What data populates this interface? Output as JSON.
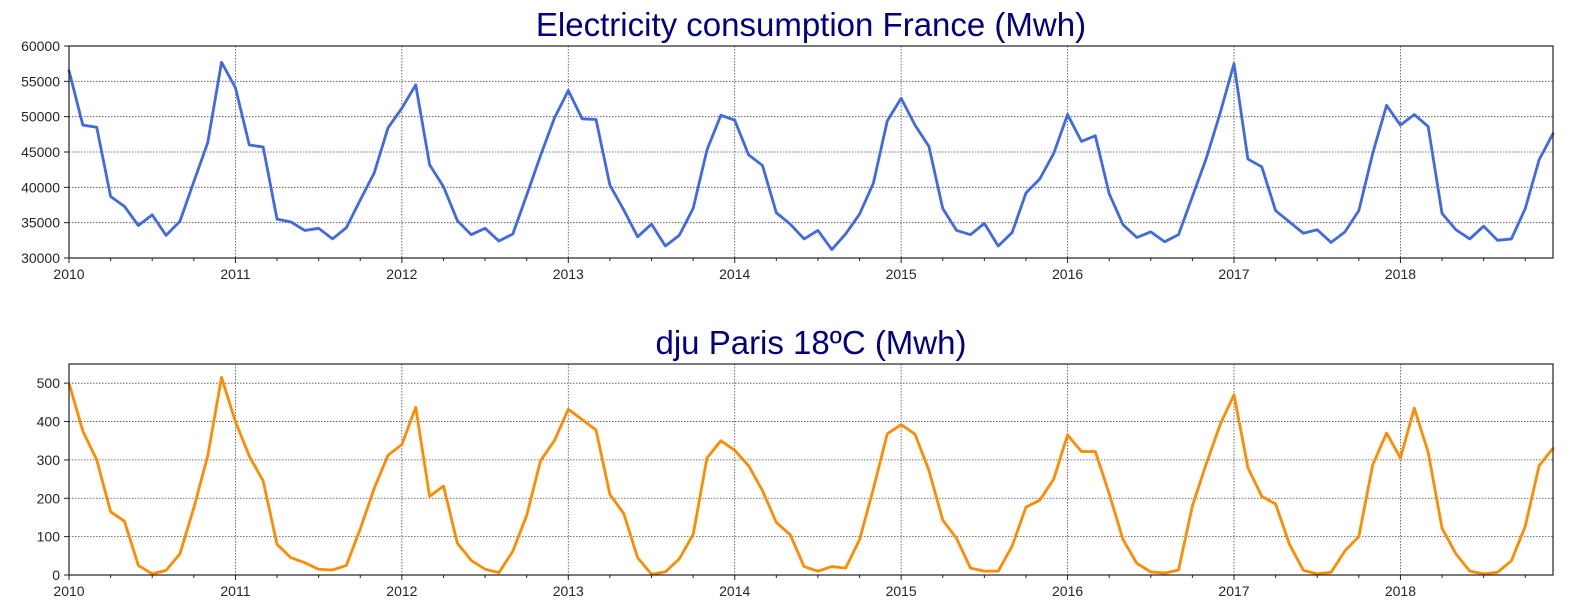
{
  "chart_data": [
    {
      "type": "line",
      "title": "Electricity consumption France (Mwh)",
      "xlabel": "",
      "ylabel": "",
      "x_start": "2010-01",
      "x_end": "2018-12",
      "xticks": [
        "2010",
        "2011",
        "2012",
        "2013",
        "2014",
        "2015",
        "2016",
        "2017",
        "2018"
      ],
      "yticks": [
        "30000",
        "35000",
        "40000",
        "45000",
        "50000",
        "55000",
        "60000"
      ],
      "ylim": [
        30000,
        60000
      ],
      "grid": true,
      "color": "#4169E1",
      "series": [
        {
          "values": [
            56500,
            48800,
            48500,
            38700,
            37300,
            34600,
            36100,
            33200,
            35200,
            40800,
            46300,
            57700,
            54100,
            46000,
            45700,
            35500,
            35100,
            33900,
            34200,
            32700,
            34300,
            38200,
            42000,
            48400,
            51200,
            54500,
            43200,
            40100,
            35300,
            33300,
            34200,
            32400,
            33400,
            38900,
            44500,
            49800,
            53700,
            49700,
            49600,
            40300,
            36800,
            33000,
            34800,
            31700,
            33200,
            37000,
            45300,
            50200,
            49500,
            44600,
            43100,
            36400,
            34800,
            32700,
            33900,
            31200,
            33400,
            36200,
            40600,
            49400,
            52600,
            48800,
            45800,
            37000,
            33900,
            33300,
            34900,
            31700,
            33600,
            39200,
            41200,
            44800,
            50300,
            46500,
            47300,
            39100,
            34700,
            32900,
            33700,
            32300,
            33300,
            38700,
            44100,
            50500,
            57500,
            44000,
            42900,
            36700,
            35100,
            33500,
            34000,
            32200,
            33700,
            36700,
            44800,
            51600,
            48800,
            50300,
            48600,
            36300,
            34000,
            32700,
            34500,
            32500,
            32700,
            37000,
            43900,
            47600
          ]
        }
      ]
    },
    {
      "type": "line",
      "title": "dju Paris 18ºC (Mwh)",
      "xlabel": "",
      "ylabel": "",
      "x_start": "2010-01",
      "x_end": "2018-12",
      "xticks": [
        "2010",
        "2011",
        "2012",
        "2013",
        "2014",
        "2015",
        "2016",
        "2017",
        "2018"
      ],
      "yticks": [
        "0",
        "100",
        "200",
        "300",
        "400",
        "500"
      ],
      "ylim": [
        0,
        550
      ],
      "grid": true,
      "color": "#FF8C00",
      "series": [
        {
          "values": [
            500,
            375,
            300,
            165,
            140,
            25,
            3,
            12,
            55,
            175,
            310,
            515,
            400,
            310,
            245,
            80,
            45,
            32,
            15,
            13,
            25,
            120,
            225,
            312,
            340,
            437,
            205,
            232,
            83,
            38,
            15,
            6,
            62,
            155,
            298,
            350,
            432,
            405,
            378,
            210,
            160,
            45,
            2,
            8,
            42,
            105,
            305,
            350,
            325,
            285,
            220,
            137,
            105,
            22,
            10,
            22,
            18,
            92,
            225,
            368,
            392,
            367,
            273,
            143,
            95,
            18,
            10,
            10,
            75,
            177,
            195,
            250,
            365,
            322,
            322,
            212,
            92,
            30,
            8,
            5,
            13,
            180,
            290,
            392,
            470,
            280,
            205,
            185,
            80,
            12,
            3,
            7,
            63,
            100,
            287,
            370,
            305,
            435,
            320,
            122,
            55,
            10,
            3,
            7,
            37,
            127,
            285,
            330
          ]
        }
      ]
    }
  ]
}
